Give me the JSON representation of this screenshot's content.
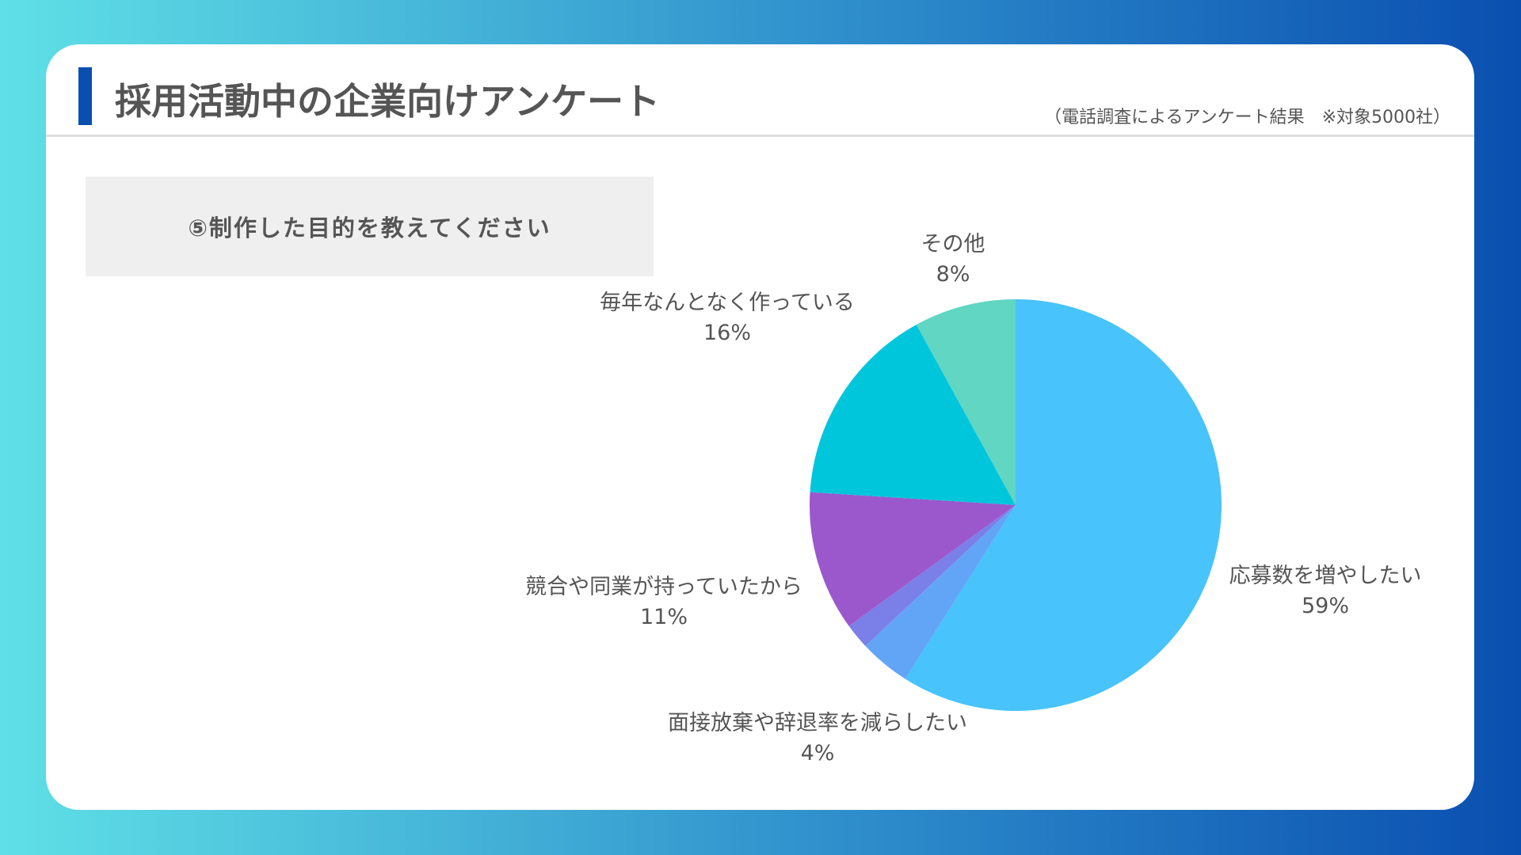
{
  "header": {
    "title": "採用活動中の企業向けアンケート",
    "subtitle": "（電話調査によるアンケート結果　※対象5000社）"
  },
  "question": "⑤制作した目的を教えてください",
  "chart_data": {
    "type": "pie",
    "title": "⑤制作した目的を教えてください",
    "start": "top",
    "direction": "clockwise",
    "slices": [
      {
        "label": "応募数を増やしたい",
        "value": 59,
        "value_label": "59%",
        "color": "#48c3fb"
      },
      {
        "label": "面接放棄や辞退率を減らしたい",
        "value": 4,
        "value_label": "4%",
        "color": "#62a5f7"
      },
      {
        "label": "",
        "value": 2,
        "value_label": "",
        "color": "#7b7fe8"
      },
      {
        "label": "競合や同業が持っていたから",
        "value": 11,
        "value_label": "11%",
        "color": "#9a58cc"
      },
      {
        "label": "毎年なんとなく作っている",
        "value": 16,
        "value_label": "16%",
        "color": "#00c6dc"
      },
      {
        "label": "その他",
        "value": 8,
        "value_label": "8%",
        "color": "#61d6c3"
      }
    ]
  }
}
